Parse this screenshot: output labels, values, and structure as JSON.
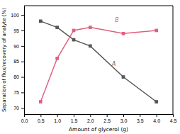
{
  "chart_data": {
    "type": "line",
    "x_label": "Amount of glycerol (g)",
    "y_label": "Separation of flux/recovery of analyte (%)",
    "x": [
      0.5,
      1.0,
      1.5,
      2.0,
      3.0,
      4.0
    ],
    "series": [
      {
        "color": "#555555",
        "marker": "square",
        "values": [
          98,
          96,
          92,
          90,
          80,
          72
        ]
      },
      {
        "color": "#e06080",
        "marker": "square",
        "values": [
          72,
          86,
          95,
          96,
          94,
          95
        ]
      }
    ],
    "annotations": [
      {
        "text": "A",
        "x": 2.65,
        "y": 83.5,
        "color": "#555555"
      },
      {
        "text": "B",
        "x": 2.75,
        "y": 97.8,
        "color": "#e06080"
      }
    ],
    "xlim": [
      0.0,
      4.5
    ],
    "ylim": [
      68,
      103
    ],
    "xticks": [
      {
        "value": 0.0,
        "label": "0.0"
      },
      {
        "value": 0.5,
        "label": "0.5"
      },
      {
        "value": 1.0,
        "label": "1.0"
      },
      {
        "value": 1.5,
        "label": "1.5"
      },
      {
        "value": 2.0,
        "label": "2.0"
      },
      {
        "value": 2.5,
        "label": "2.5"
      },
      {
        "value": 3.0,
        "label": "3.0"
      },
      {
        "value": 3.5,
        "label": "3.5"
      },
      {
        "value": 4.0,
        "label": "4.0"
      },
      {
        "value": 4.5,
        "label": "4.5"
      }
    ],
    "yticks": [
      70,
      75,
      80,
      85,
      90,
      95,
      100
    ]
  }
}
